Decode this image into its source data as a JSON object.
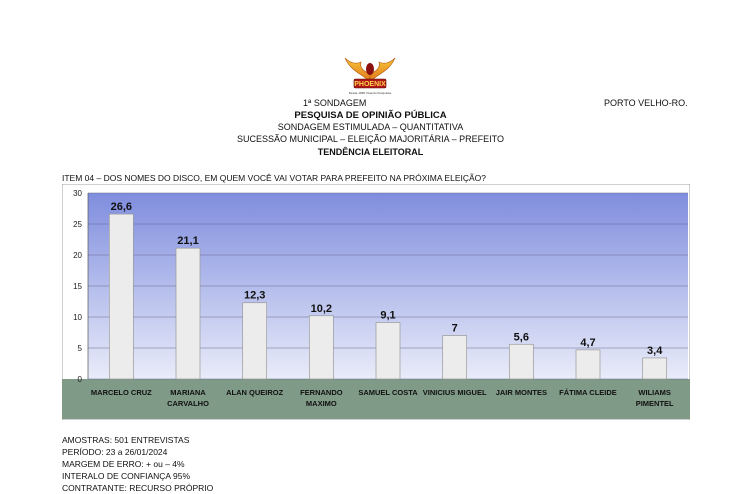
{
  "header": {
    "brand_text": "PHOENIX",
    "brand_tagline": "Desde 1998 Vivendo Pesquisas",
    "survey_label": "1ª SONDAGEM",
    "city": "PORTO VELHO-RO.",
    "title": "PESQUISA DE OPINIÃO PÚBLICA",
    "line2": "SONDAGEM ESTIMULADA – QUANTITATIVA",
    "line3": "SUCESSÃO MUNICIPAL – ELEIÇÃO MAJORITÁRIA – PREFEITO",
    "line4": "TENDÊNCIA ELEITORAL"
  },
  "question": "ITEM 04 – DOS NOMES DO DISCO, EM QUEM VOCÊ VAI VOTAR PARA PREFEITO NA PRÓXIMA ELEIÇÃO?",
  "colors": {
    "plot_top": "#7f8dde",
    "plot_bottom": "#e9ecf9",
    "category_band": "#7f9a86",
    "bar_fill": "#ececec",
    "bar_stroke": "#9a9a9a"
  },
  "chart_data": {
    "type": "bar",
    "categories": [
      [
        "MARCELO CRUZ"
      ],
      [
        "MARIANA",
        "CARVALHO"
      ],
      [
        "ALAN QUEIROZ"
      ],
      [
        "FERNANDO",
        "MAXIMO"
      ],
      [
        "SAMUEL COSTA"
      ],
      [
        "VINICIUS MIGUEL"
      ],
      [
        "JAIR MONTES"
      ],
      [
        "FÁTIMA CLEIDE"
      ],
      [
        "WILIAMS",
        "PIMENTEL"
      ]
    ],
    "values": [
      26.6,
      21.1,
      12.3,
      10.2,
      9.1,
      7,
      5.6,
      4.7,
      3.4
    ],
    "value_labels": [
      "26,6",
      "21,1",
      "12,3",
      "10,2",
      "9,1",
      "7",
      "5,6",
      "4,7",
      "3,4"
    ],
    "ylim": [
      0,
      30
    ],
    "yticks": [
      0,
      5,
      10,
      15,
      20,
      25,
      30
    ],
    "grid": true,
    "title": "",
    "xlabel": "",
    "ylabel": ""
  },
  "footer": {
    "lines": [
      "AMOSTRAS: 501 ENTREVISTAS",
      "PERÍODO: 23 a 26/01/2024",
      "MARGEM DE ERRO: + ou – 4%",
      "INTERALO DE CONFIANÇA 95%",
      "CONTRATANTE: RECURSO PRÓPRIO"
    ]
  }
}
